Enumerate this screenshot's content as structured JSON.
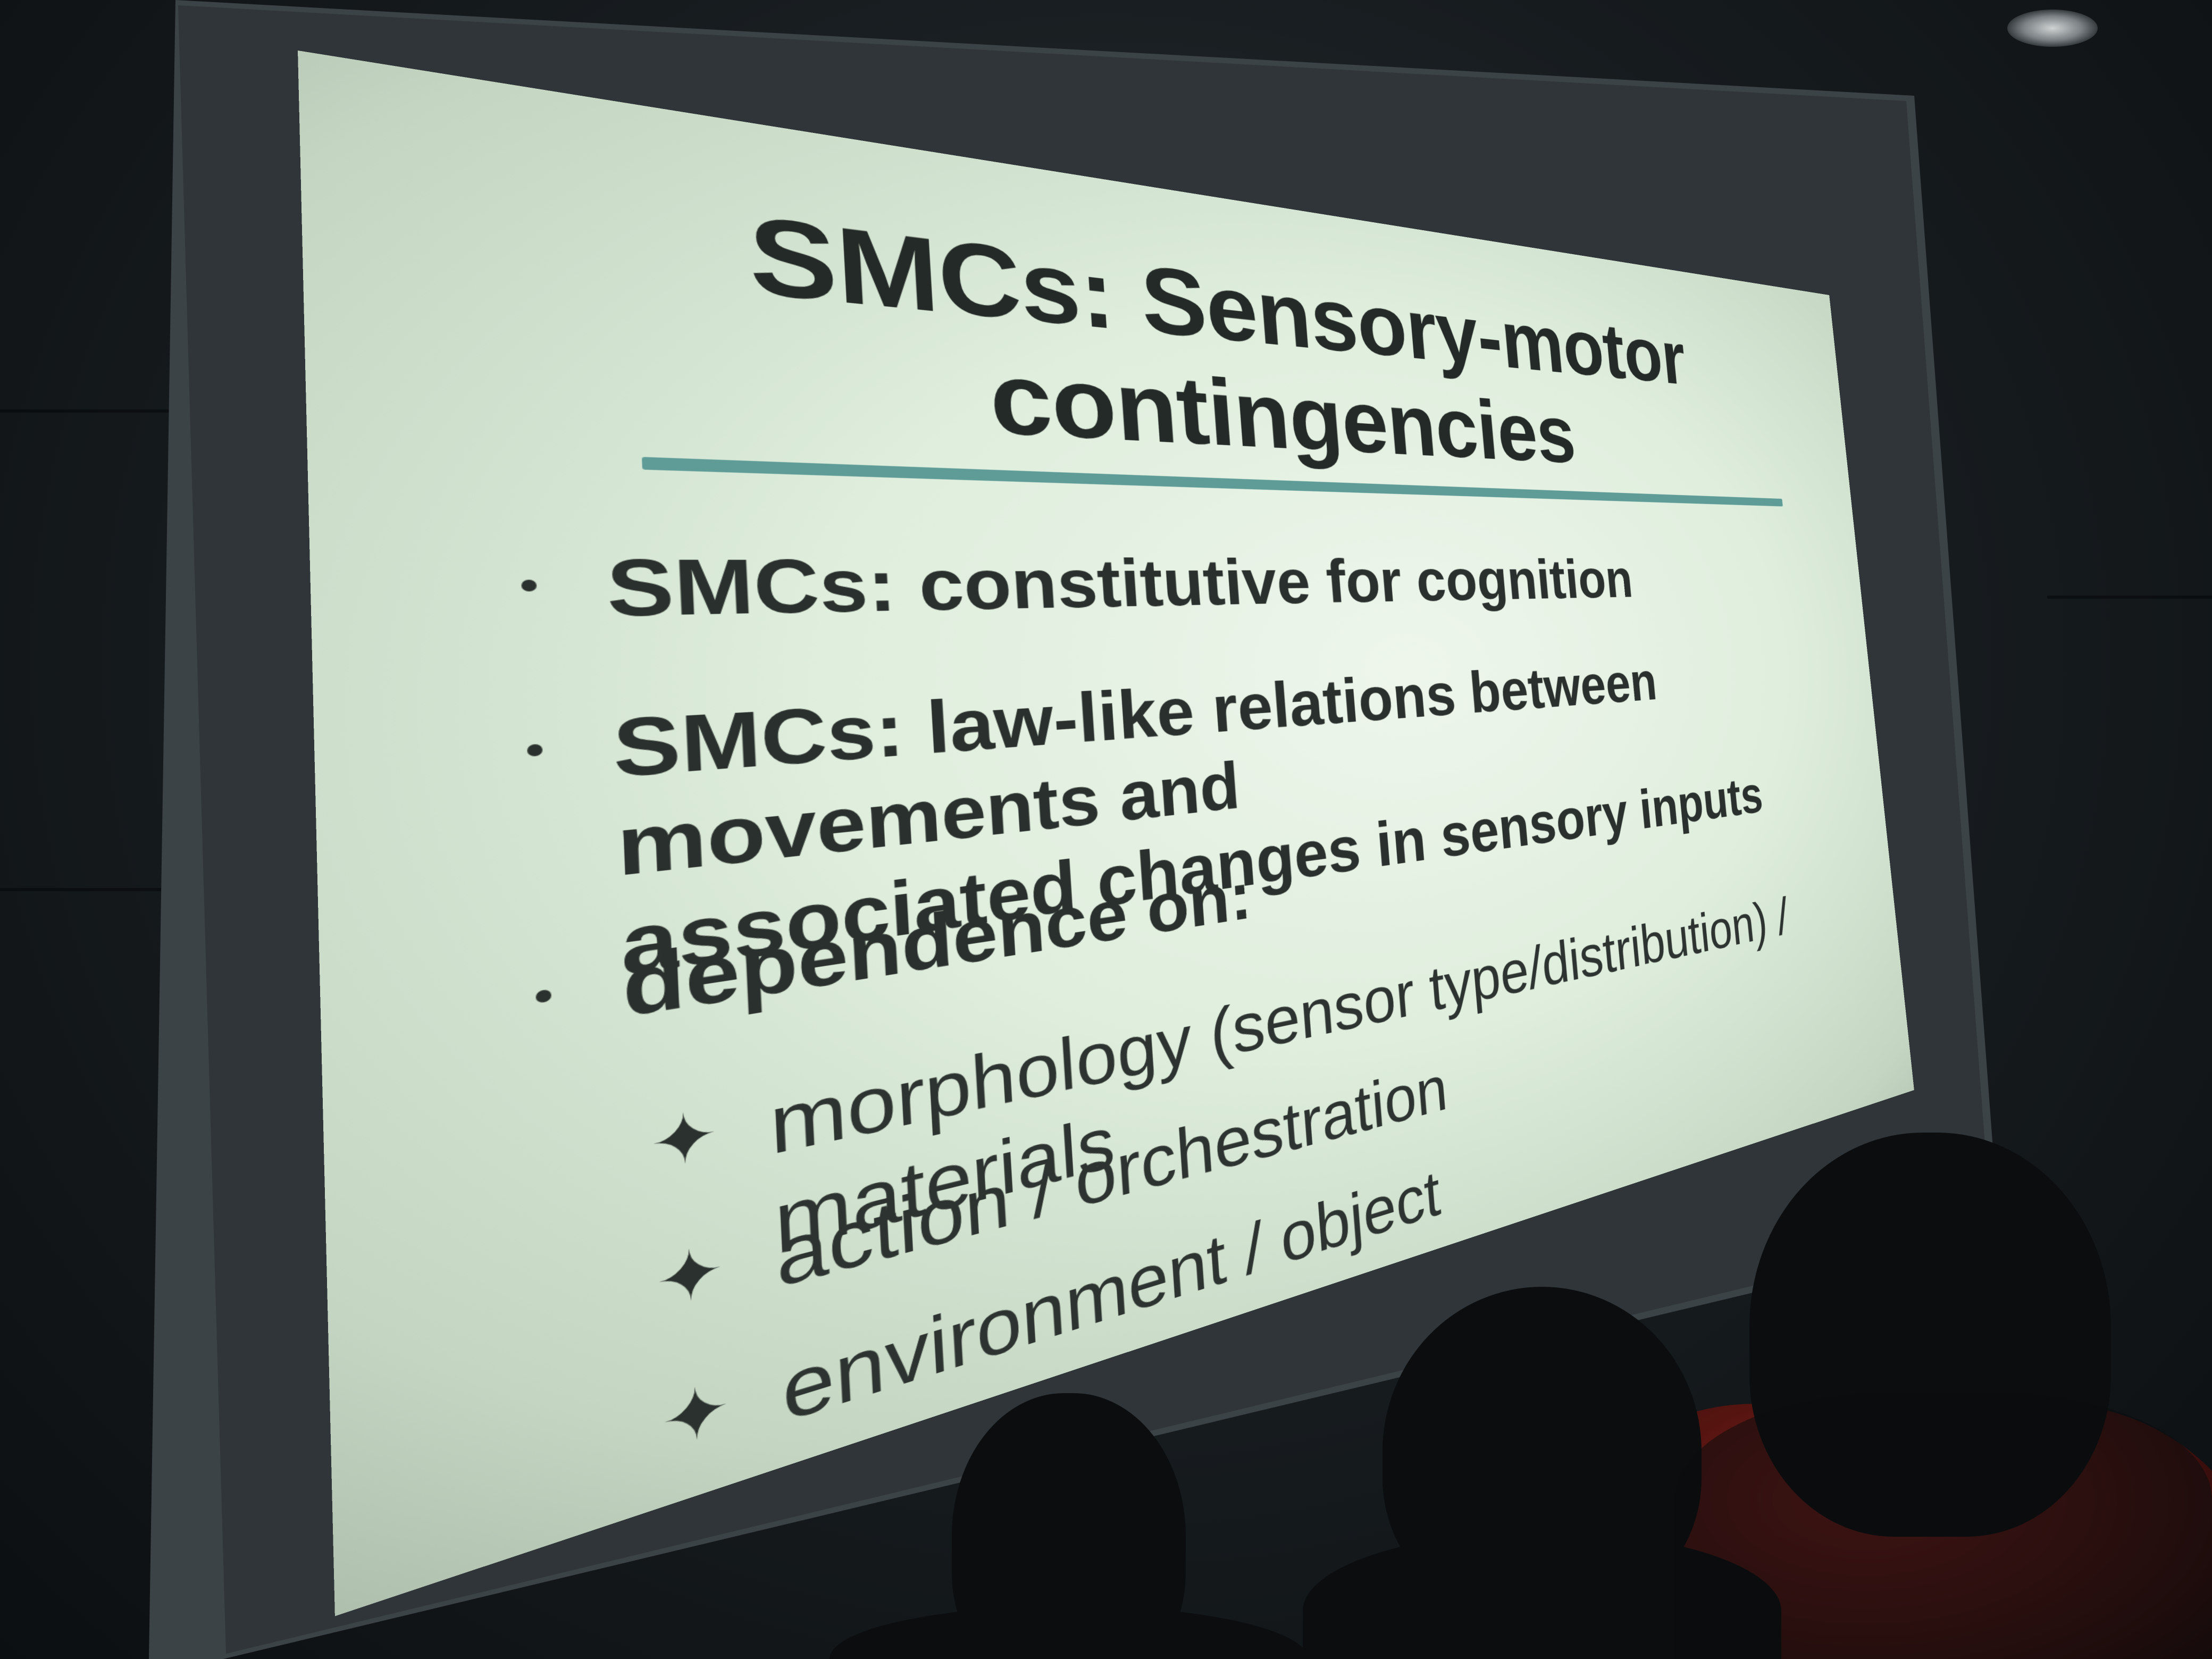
{
  "slide": {
    "title_line1": "SMCs: Sensory-motor",
    "title_line2": "contingencies",
    "bullets": [
      {
        "text": "SMCs: constitutive for cognition"
      },
      {
        "text_line1": "SMCs: law-like relations between movements and",
        "text_line2": "associated changes in sensory inputs"
      },
      {
        "text": "dependence on:"
      }
    ],
    "sub_bullets": [
      {
        "text": "morphology (sensor type/distribution) / materials"
      },
      {
        "text": "action / orchestration"
      },
      {
        "text": "environment / object"
      }
    ],
    "colors": {
      "background": "#e4f0e1",
      "text": "#2a302d",
      "title_rule": "#5f9c98"
    }
  },
  "scene": {
    "icons": [
      "bullet-dot",
      "four-point-star-icon",
      "ceiling-light-icon"
    ]
  }
}
